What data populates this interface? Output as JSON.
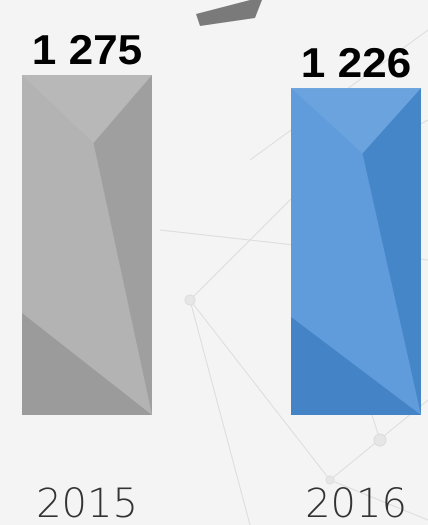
{
  "chart_data": {
    "type": "bar",
    "categories": [
      "2015",
      "2016"
    ],
    "values": [
      1275,
      1226
    ],
    "value_labels": [
      "1 275",
      "1 226"
    ],
    "colors": [
      "#a9a9a9",
      "#4a8fd6"
    ]
  }
}
